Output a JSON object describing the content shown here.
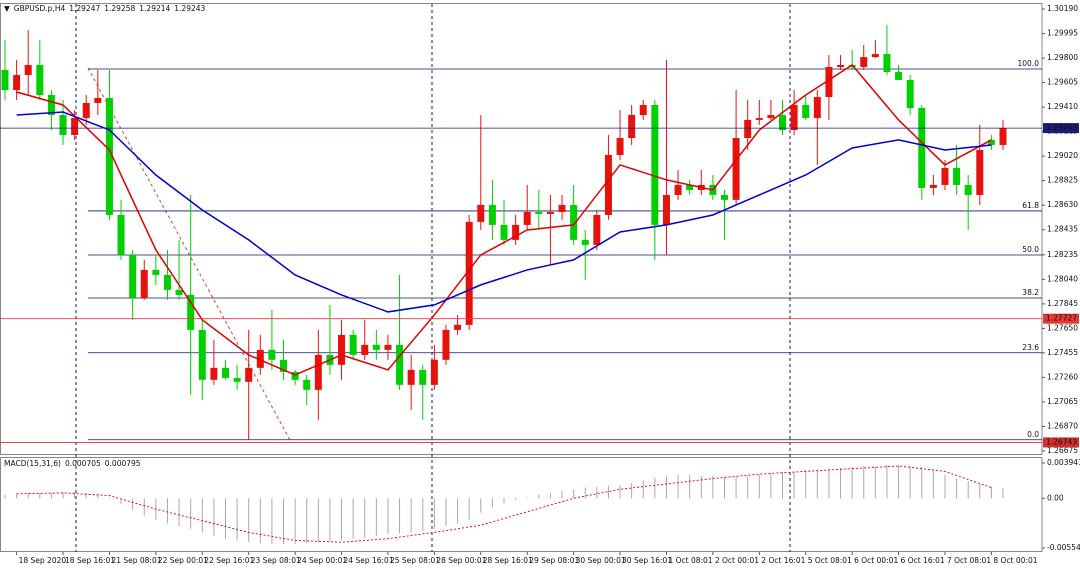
{
  "chart_data": [
    {
      "type": "candlestick",
      "symbol": "GBPUSD.p,H4",
      "readout": [
        1.29247,
        1.29258,
        1.29214,
        1.29243
      ],
      "up_color": "#e8120c",
      "down_color": "#00d000",
      "categories": [
        null,
        "18 Sep 2020",
        null,
        null,
        null,
        "18 Sep 16:01",
        null,
        null,
        null,
        "21 Sep 08:01",
        null,
        null,
        null,
        "22 Sep 00:01",
        null,
        null,
        null,
        "22 Sep 16:01",
        null,
        null,
        null,
        "23 Sep 08:01",
        null,
        null,
        null,
        "24 Sep 00:01",
        null,
        null,
        null,
        "24 Sep 16:01",
        null,
        null,
        null,
        "25 Sep 08:01",
        null,
        null,
        null,
        "28 Sep 00:01",
        null,
        null,
        null,
        "28 Sep 16:01",
        null,
        null,
        null,
        "29 Sep 08:01",
        null,
        null,
        null,
        "30 Sep 00:01",
        null,
        null,
        null,
        "30 Sep 16:01",
        null,
        null,
        null,
        "1 Oct 08:01",
        null,
        null,
        null,
        "2 Oct 00:01",
        null,
        null,
        null,
        "2 Oct 16:01",
        null,
        null,
        null,
        "5 Oct 08:01",
        null,
        null,
        null,
        "6 Oct 00:01",
        null,
        null,
        null,
        "6 Oct 16:01",
        null,
        null,
        null,
        "7 Oct 08:01",
        null,
        null,
        null,
        "8 Oct 00:01",
        null
      ],
      "open": [
        1.29705,
        1.29546,
        1.29665,
        1.29745,
        1.29506,
        1.29347,
        1.29188,
        1.29323,
        1.29443,
        1.29482,
        1.28552,
        1.28234,
        1.27892,
        1.28115,
        1.28075,
        1.27956,
        1.27916,
        1.27638,
        1.27241,
        1.27336,
        1.27256,
        1.27225,
        1.27336,
        1.27479,
        1.274,
        1.27304,
        1.27241,
        1.27161,
        1.27439,
        1.2736,
        1.27598,
        1.27439,
        1.27519,
        1.27479,
        1.27519,
        1.27201,
        1.2732,
        1.27201,
        1.274,
        1.27638,
        1.27678,
        1.28497,
        1.28632,
        1.28473,
        1.28354,
        1.28473,
        1.28576,
        1.2856,
        1.28576,
        1.28632,
        1.28354,
        1.28314,
        1.28552,
        1.29029,
        1.29164,
        1.29347,
        1.29427,
        1.28473,
        1.28711,
        1.28791,
        1.28751,
        1.28791,
        1.28711,
        1.28672,
        1.29164,
        1.29308,
        1.29323,
        1.29347,
        1.29228,
        1.29427,
        1.29323,
        1.2949,
        1.29729,
        1.29745,
        1.29729,
        1.29808,
        1.29832,
        1.29689,
        1.29626,
        1.29403,
        1.28767,
        1.28791,
        1.28926,
        1.28791,
        1.28711,
        1.29149,
        1.29109
      ],
      "high": [
        1.29944,
        1.29785,
        1.30023,
        1.29944,
        1.29546,
        1.29467,
        1.29387,
        1.29506,
        1.29705,
        1.29705,
        1.28672,
        1.28274,
        1.28195,
        1.28234,
        1.28274,
        1.28354,
        1.28711,
        1.27718,
        1.27559,
        1.274,
        1.2736,
        1.27638,
        1.27598,
        1.27797,
        1.27559,
        1.2732,
        1.2728,
        1.27638,
        1.27837,
        1.27718,
        1.27638,
        1.27718,
        1.27638,
        1.27598,
        1.28075,
        1.27439,
        1.2736,
        1.27519,
        1.27678,
        1.27757,
        1.28552,
        1.29347,
        1.28831,
        1.28672,
        1.28552,
        1.28791,
        1.28751,
        1.28711,
        1.28711,
        1.28791,
        1.28433,
        1.28592,
        1.29188,
        1.29387,
        1.29427,
        1.29467,
        1.29467,
        1.29785,
        1.2891,
        1.28831,
        1.2891,
        1.2887,
        1.28751,
        1.29546,
        1.29467,
        1.29467,
        1.29467,
        1.29467,
        1.29546,
        1.29506,
        1.29546,
        1.29824,
        1.29824,
        1.29864,
        1.29904,
        1.29944,
        1.30063,
        1.29745,
        1.29665,
        1.29427,
        1.2887,
        1.2899,
        1.29109,
        1.2887,
        1.29268,
        1.29188,
        1.29308
      ],
      "low": [
        1.29467,
        1.29467,
        1.29506,
        1.29467,
        1.29228,
        1.29109,
        1.29149,
        1.29268,
        1.29347,
        1.28513,
        1.28195,
        1.27718,
        1.27877,
        1.27996,
        1.27877,
        1.27877,
        1.27121,
        1.27082,
        1.27201,
        1.27241,
        1.27161,
        1.26764,
        1.2728,
        1.2732,
        1.27241,
        1.27201,
        1.27042,
        1.26923,
        1.2728,
        1.27241,
        1.274,
        1.274,
        1.274,
        1.274,
        1.27161,
        1.27002,
        1.26923,
        1.27161,
        1.2736,
        1.27598,
        1.27638,
        1.28433,
        1.28354,
        1.28314,
        1.28314,
        1.28433,
        1.28433,
        1.28155,
        1.28513,
        1.28314,
        1.28036,
        1.28274,
        1.28513,
        1.2899,
        1.29109,
        1.29308,
        1.28195,
        1.28234,
        1.28672,
        1.28711,
        1.28711,
        1.28672,
        1.28354,
        1.28632,
        1.29069,
        1.29268,
        1.29308,
        1.29188,
        1.29188,
        1.29308,
        1.2895,
        1.29308,
        1.29705,
        1.29705,
        1.29705,
        1.298,
        1.29665,
        1.29626,
        1.29347,
        1.28672,
        1.28711,
        1.28751,
        1.28711,
        1.28433,
        1.28632,
        1.29069,
        1.29069
      ],
      "close": [
        1.29546,
        1.29665,
        1.29745,
        1.29506,
        1.29347,
        1.29188,
        1.29323,
        1.29443,
        1.29482,
        1.28552,
        1.28234,
        1.27892,
        1.28115,
        1.28075,
        1.27956,
        1.27916,
        1.27638,
        1.27241,
        1.27336,
        1.27256,
        1.27225,
        1.27336,
        1.27479,
        1.274,
        1.27304,
        1.27241,
        1.27161,
        1.27439,
        1.2736,
        1.27598,
        1.27439,
        1.27519,
        1.27479,
        1.27519,
        1.27201,
        1.2732,
        1.27201,
        1.274,
        1.27638,
        1.27678,
        1.28497,
        1.28632,
        1.28473,
        1.28354,
        1.28473,
        1.28576,
        1.2856,
        1.28576,
        1.28632,
        1.28354,
        1.28314,
        1.28552,
        1.29029,
        1.29164,
        1.29347,
        1.29427,
        1.28473,
        1.28711,
        1.28791,
        1.28751,
        1.28791,
        1.28711,
        1.28672,
        1.29164,
        1.29308,
        1.29323,
        1.29347,
        1.29228,
        1.29427,
        1.29323,
        1.2949,
        1.29729,
        1.29745,
        1.29729,
        1.29808,
        1.29832,
        1.29689,
        1.29626,
        1.29403,
        1.28767,
        1.28791,
        1.28926,
        1.28791,
        1.28711,
        1.29069,
        1.29109,
        1.29244
      ],
      "series": [
        {
          "color": "#e00000",
          "x": [
            "18 Sep 2020",
            "18 Sep 16:01",
            "21 Sep 08:01",
            "22 Sep 00:01",
            "22 Sep 16:01",
            "23 Sep 08:01",
            "24 Sep 00:01",
            "24 Sep 16:01",
            "25 Sep 08:01",
            "28 Sep 00:01",
            "28 Sep 16:01",
            "29 Sep 08:01",
            "30 Sep 00:01",
            "30 Sep 16:01",
            "1 Oct 08:01",
            "2 Oct 00:01",
            "2 Oct 16:01",
            "5 Oct 08:01",
            "6 Oct 00:01",
            "6 Oct 16:01",
            "7 Oct 08:01",
            "8 Oct 00:01"
          ],
          "values": [
            1.2953,
            1.29427,
            1.29069,
            1.28274,
            1.27718,
            1.27439,
            1.2728,
            1.27439,
            1.2732,
            1.27757,
            1.28234,
            1.28433,
            1.28473,
            1.2895,
            1.28831,
            1.28751,
            1.29228,
            1.29506,
            1.29745,
            1.29308,
            1.2895,
            1.29149
          ]
        },
        {
          "color": "#0000d0",
          "x": [
            "18 Sep 2020",
            "18 Sep 16:01",
            "21 Sep 08:01",
            "22 Sep 00:01",
            "22 Sep 16:01",
            "23 Sep 08:01",
            "24 Sep 00:01",
            "24 Sep 16:01",
            "25 Sep 08:01",
            "28 Sep 00:01",
            "28 Sep 16:01",
            "29 Sep 08:01",
            "30 Sep 00:01",
            "30 Sep 16:01",
            "1 Oct 08:01",
            "2 Oct 00:01",
            "2 Oct 16:01",
            "5 Oct 08:01",
            "6 Oct 00:01",
            "6 Oct 16:01",
            "7 Oct 08:01",
            "8 Oct 00:01"
          ],
          "values": [
            1.29347,
            1.29371,
            1.29228,
            1.2887,
            1.28592,
            1.28354,
            1.28075,
            1.27916,
            1.27781,
            1.27837,
            1.27996,
            1.28115,
            1.28195,
            1.28417,
            1.28473,
            1.28552,
            1.28711,
            1.2887,
            1.29085,
            1.29149,
            1.29069,
            1.29109
          ]
        }
      ],
      "fib_levels": [
        {
          "value": 1.29713,
          "label": "100.0"
        },
        {
          "value": 1.28584,
          "label": "61.8"
        },
        {
          "value": 1.28234,
          "label": "50.0"
        },
        {
          "value": 1.27892,
          "label": "38.2"
        },
        {
          "value": 1.27456,
          "label": "23.6"
        },
        {
          "value": 1.26764,
          "label": "0.0"
        }
      ],
      "fib_color": "#101070",
      "price_lines": [
        {
          "value": 1.29243,
          "color": "#1b1b78"
        },
        {
          "value": 1.27727,
          "color": "#e53935"
        },
        {
          "value": 1.26743,
          "color": "#d32f2f"
        }
      ],
      "ylim": [
        1.26643,
        1.30238
      ],
      "yticks": [
        {
          "value": 1.3019,
          "label": "1.30190"
        },
        1.29995,
        {
          "value": 1.298,
          "label": "1.29800"
        },
        1.29605,
        {
          "value": 1.2941,
          "label": "1.29410"
        },
        1.29215,
        {
          "value": 1.2902,
          "label": "1.29020"
        },
        1.28825,
        {
          "value": 1.2863,
          "label": "1.28630"
        },
        1.28435,
        1.28235,
        {
          "value": 1.2804,
          "label": "1.28040"
        },
        1.27845,
        {
          "value": 1.2765,
          "label": "1.27650"
        },
        1.27455,
        {
          "value": 1.2726,
          "label": "1.27260"
        },
        1.27065,
        {
          "value": 1.2687,
          "label": "1.26870"
        },
        1.26675
      ]
    },
    {
      "type": "macd",
      "title": "MACD(15,31,6)",
      "readout": [
        0.000705,
        0.000795
      ],
      "color": "#a8a8a8",
      "values": [
        0.0004,
        0.0005,
        0.0006,
        0.0006,
        0.0006,
        0.0007,
        0.0007,
        0.0006,
        0.0005,
        0.0001,
        -0.0006,
        -0.0013,
        -0.0019,
        -0.0024,
        -0.0028,
        -0.0031,
        -0.0034,
        -0.0038,
        -0.0042,
        -0.0045,
        -0.0047,
        -0.0049,
        -0.005,
        -0.0051,
        -0.0051,
        -0.0051,
        -0.005,
        -0.0049,
        -0.0048,
        -0.0047,
        -0.0045,
        -0.0044,
        -0.0042,
        -0.004,
        -0.0039,
        -0.0038,
        -0.0036,
        -0.0034,
        -0.0031,
        -0.0028,
        -0.0024,
        -0.0016,
        -0.001,
        -0.0006,
        -0.0002,
        0.0001,
        0.0004,
        0.0006,
        0.0008,
        0.001,
        0.0012,
        0.0013,
        0.0014,
        0.0015,
        0.0017,
        0.002,
        0.0023,
        0.0025,
        0.0026,
        0.0026,
        0.0025,
        0.0025,
        0.0024,
        0.0024,
        0.0025,
        0.0027,
        0.0028,
        0.0029,
        0.003,
        0.0031,
        0.0032,
        0.0033,
        0.0034,
        0.0035,
        0.0036,
        0.0036,
        0.0037,
        0.0037,
        0.0036,
        0.0035,
        0.0032,
        0.0026,
        0.0022,
        0.0019,
        0.0016,
        0.0013,
        0.0011
      ],
      "signal": {
        "color": "#e00000",
        "x": [
          "18 Sep 2020",
          "18 Sep 16:01",
          "21 Sep 08:01",
          "22 Sep 00:01",
          "22 Sep 16:01",
          "23 Sep 08:01",
          "24 Sep 00:01",
          "24 Sep 16:01",
          "25 Sep 08:01",
          "28 Sep 00:01",
          "28 Sep 16:01",
          "29 Sep 08:01",
          "30 Sep 00:01",
          "30 Sep 16:01",
          "1 Oct 08:01",
          "2 Oct 00:01",
          "2 Oct 16:01",
          "5 Oct 08:01",
          "6 Oct 00:01",
          "6 Oct 16:01",
          "7 Oct 08:01",
          "8 Oct 00:01"
        ],
        "values": [
          0.0005,
          0.0006,
          0.0003,
          -0.0012,
          -0.0025,
          -0.0038,
          -0.0047,
          -0.0049,
          -0.0045,
          -0.0038,
          -0.003,
          -0.0015,
          0.0,
          0.001,
          0.0016,
          0.0022,
          0.0027,
          0.003,
          0.0033,
          0.0036,
          0.003,
          0.0012
        ]
      },
      "ylim": [
        -0.005986,
        0.004603
      ],
      "yticks": [
        0.003941,
        {
          "value": 0,
          "label": "0.00"
        },
        -0.005545
      ]
    }
  ]
}
